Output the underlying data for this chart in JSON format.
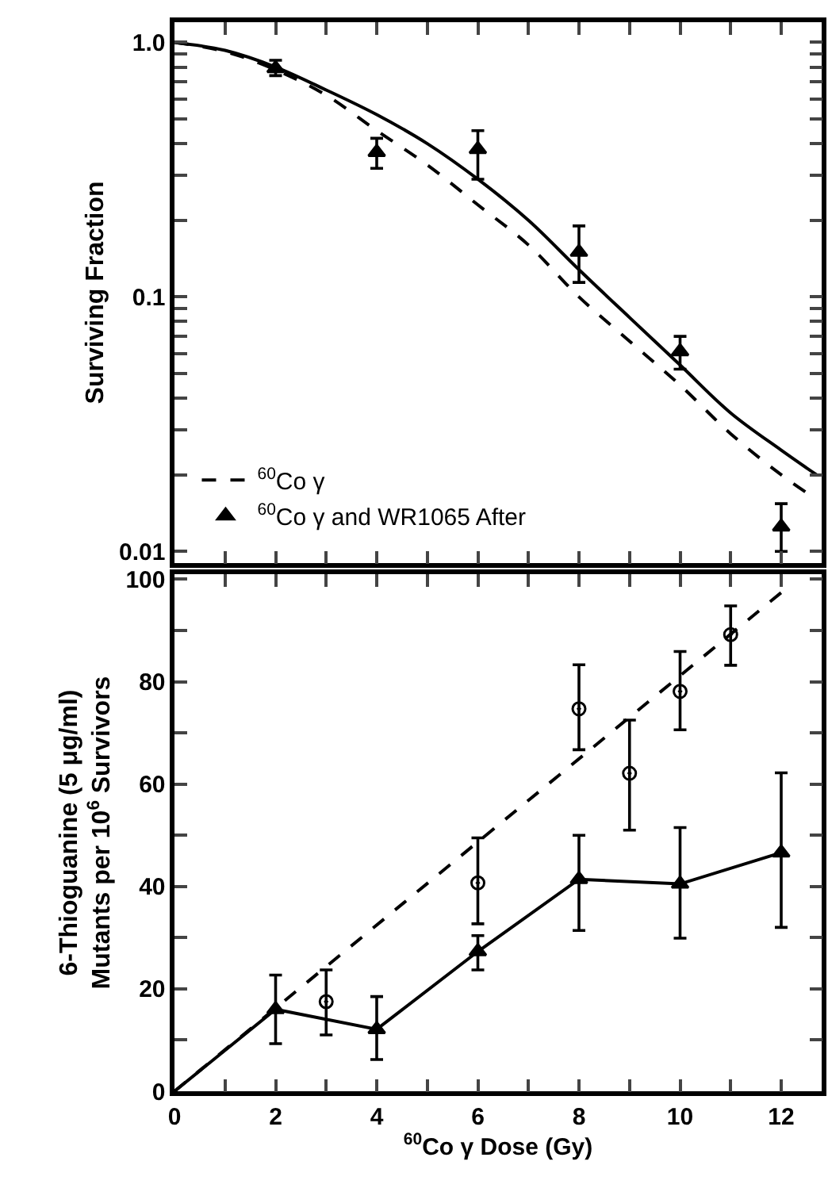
{
  "chart_data": [
    {
      "type": "line",
      "ylabel": "Surviving Fraction",
      "log": "y",
      "xlim": [
        0,
        12.8
      ],
      "ylim": [
        0.009,
        1.2
      ],
      "tick_labels": "y",
      "legend": "bottom left",
      "xticks": [
        {
          "value": 0,
          "label": null
        },
        {
          "value": 1,
          "label": null
        },
        {
          "value": 2,
          "label": null
        },
        {
          "value": 3,
          "label": null
        },
        {
          "value": 4,
          "label": null
        },
        {
          "value": 5,
          "label": null
        },
        {
          "value": 6,
          "label": null
        },
        {
          "value": 7,
          "label": null
        },
        {
          "value": 8,
          "label": null
        },
        {
          "value": 9,
          "label": null
        },
        {
          "value": 10,
          "label": null
        },
        {
          "value": 11,
          "label": null
        },
        {
          "value": 12,
          "label": null
        }
      ],
      "yticks": [
        0.01,
        {
          "value": 0.02,
          "label": null
        },
        {
          "value": 0.03,
          "label": null
        },
        {
          "value": 0.04,
          "label": null
        },
        {
          "value": 0.05,
          "label": null
        },
        {
          "value": 0.06,
          "label": null
        },
        {
          "value": 0.07,
          "label": null
        },
        {
          "value": 0.08,
          "label": null
        },
        {
          "value": 0.09,
          "label": null
        },
        0.1,
        {
          "value": 0.2,
          "label": null
        },
        {
          "value": 0.3,
          "label": null
        },
        {
          "value": 0.4,
          "label": null
        },
        {
          "value": 0.5,
          "label": null
        },
        {
          "value": 0.6,
          "label": null
        },
        {
          "value": 0.7,
          "label": null
        },
        {
          "value": 0.8,
          "label": null
        },
        {
          "value": 0.9,
          "label": null
        },
        {
          "value": 1,
          "label": "1.0"
        }
      ],
      "series": [
        {
          "name": "$^{60}$Co γ",
          "color": "#000000",
          "line_style": "dashed",
          "marker": "none",
          "x": [
            0,
            1,
            2,
            3,
            4,
            5,
            6,
            7,
            8,
            9,
            10,
            11,
            12,
            12.7
          ],
          "values": [
            1.0,
            0.92,
            0.78,
            0.62,
            0.45,
            0.33,
            0.23,
            0.16,
            0.1,
            0.067,
            0.045,
            0.029,
            0.02,
            0.016
          ]
        },
        {
          "color": "#000000",
          "line_style": "solid",
          "marker": "none",
          "x": [
            0,
            1,
            2,
            3,
            4,
            5,
            6,
            7,
            8,
            9,
            10,
            11,
            12,
            12.7
          ],
          "values": [
            1.0,
            0.93,
            0.8,
            0.65,
            0.52,
            0.4,
            0.29,
            0.2,
            0.128,
            0.083,
            0.054,
            0.035,
            0.025,
            0.02
          ]
        },
        {
          "type": "scatter",
          "name": "$^{60}$Co γ and WR1065 After",
          "color": "#000000",
          "marker": "triangle",
          "x": [
            2,
            4,
            6,
            8,
            10,
            12
          ],
          "values": [
            0.79,
            0.37,
            0.38,
            0.15,
            0.061,
            0.0125
          ],
          "errors": [
            [
              0.74,
              0.85
            ],
            [
              0.32,
              0.42
            ],
            [
              0.29,
              0.45
            ],
            [
              0.114,
              0.19
            ],
            [
              0.052,
              0.07
            ],
            [
              0.01,
              0.0154
            ]
          ]
        }
      ]
    },
    {
      "type": "line",
      "xlabel": "$^{60}$Co γ Dose (Gy)",
      "ylabel": "6-Thioguanine (5 μg/ml)\nMutants per 10$^{6}$ Survivors",
      "xlim": [
        0,
        12.8
      ],
      "ylim": [
        0,
        101
      ],
      "xticks": [
        0,
        {
          "value": 1,
          "label": null
        },
        2,
        {
          "value": 3,
          "label": null
        },
        4,
        {
          "value": 5,
          "label": null
        },
        6,
        {
          "value": 7,
          "label": null
        },
        8,
        {
          "value": 9,
          "label": null
        },
        10,
        {
          "value": 11,
          "label": null
        },
        12
      ],
      "yticks": [
        0,
        {
          "value": 10,
          "label": null
        },
        20,
        {
          "value": 30,
          "label": null
        },
        40,
        {
          "value": 50,
          "label": null
        },
        60,
        {
          "value": 70,
          "label": null
        },
        80,
        {
          "value": 90,
          "label": null
        },
        100
      ],
      "series": [
        {
          "color": "#000000",
          "line_style": "dashed",
          "marker": "none",
          "x": [
            0,
            12
          ],
          "values": [
            0,
            97.4
          ]
        },
        {
          "type": "scatter",
          "color": "#000000",
          "marker": "circle",
          "x": [
            3,
            6,
            8,
            9,
            10,
            11
          ],
          "values": [
            17.5,
            40.7,
            74.7,
            62.1,
            78.1,
            89.2
          ],
          "errors": [
            [
              11.0,
              23.7
            ],
            [
              32.7,
              49.5
            ],
            [
              66.7,
              83.3
            ],
            [
              51.0,
              72.5
            ],
            [
              70.6,
              85.9
            ],
            [
              83.2,
              94.8
            ]
          ]
        },
        {
          "color": "#000000",
          "line_style": "solid",
          "marker": "none",
          "x": [
            0,
            2,
            4,
            6,
            8,
            10,
            12
          ],
          "values": [
            0,
            16.0,
            12.1,
            27.3,
            41.4,
            40.5,
            46.6
          ]
        },
        {
          "type": "scatter",
          "color": "#000000",
          "marker": "triangle",
          "x": [
            2,
            4,
            6,
            8,
            10,
            12
          ],
          "values": [
            16.0,
            12.1,
            27.3,
            41.4,
            40.5,
            46.6
          ],
          "errors": [
            [
              9.3,
              22.7
            ],
            [
              6.2,
              18.5
            ],
            [
              23.7,
              30.4
            ],
            [
              31.4,
              50.0
            ],
            [
              29.9,
              51.5
            ],
            [
              32.0,
              62.2
            ]
          ]
        }
      ]
    }
  ]
}
